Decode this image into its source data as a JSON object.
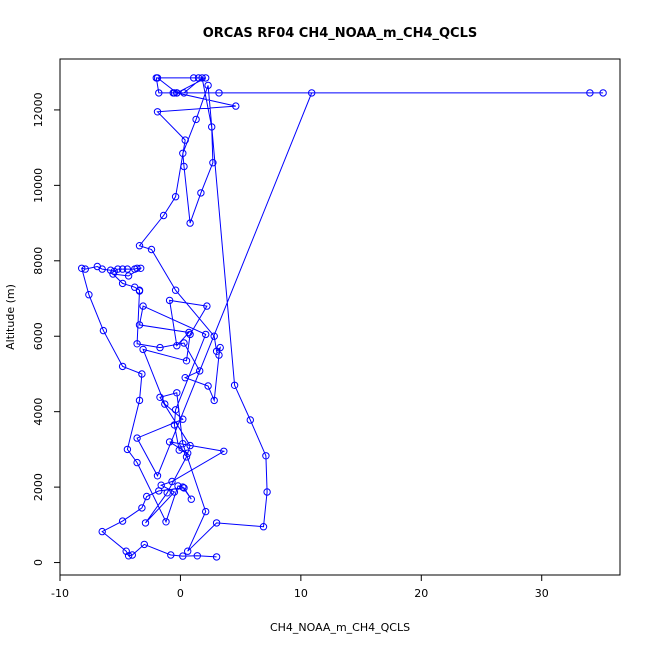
{
  "chart_data": {
    "type": "line",
    "title": "ORCAS RF04 CH4_NOAA_m_CH4_QCLS",
    "xlabel": "CH4_NOAA_m_CH4_QCLS",
    "ylabel": "Altitude (m)",
    "xlim": [
      -10,
      36.5
    ],
    "ylim": [
      -330,
      13350
    ],
    "x_ticks": [
      -10,
      0,
      10,
      20,
      30
    ],
    "y_ticks": [
      0,
      2000,
      4000,
      6000,
      8000,
      10000,
      12000
    ],
    "grid": false,
    "legend": "none",
    "color": "#0000ff",
    "series": [
      {
        "x": [
          3.0,
          1.4,
          0.2,
          -0.8,
          -3.0,
          -4.0,
          -4.3,
          -4.5,
          -6.5,
          -4.8,
          -3.2,
          -2.8,
          -1.8,
          0.3,
          0.9,
          0.2,
          -0.2,
          -1.2,
          -3.6,
          -4.4,
          -3.4,
          -3.2,
          -4.8,
          -6.4,
          -7.6,
          -8.2,
          -7.9,
          -6.9,
          -6.5,
          -5.8,
          -5.5,
          -5.2,
          -4.8,
          -4.4,
          -3.8,
          -3.6,
          -3.3,
          -4.3,
          -5.6,
          -4.8,
          -3.8,
          -3.4,
          -3.4,
          -3.6,
          -1.7,
          0.3,
          1.6,
          0.4,
          2.3,
          2.8,
          3.2,
          3.3,
          3.0,
          2.8,
          -0.4,
          -2.4,
          -3.4,
          -1.4,
          -0.4,
          0.4,
          -1.9,
          4.6,
          -0.3,
          2.1,
          1.5,
          1.1,
          -2.0,
          -1.8,
          -0.6,
          0.3,
          1.8,
          2.6,
          2.7,
          1.7,
          0.8,
          0.3,
          0.2,
          1.3,
          2.3,
          4.5,
          5.8,
          7.1,
          7.2,
          6.9,
          3.0,
          0.6,
          2.1,
          0.2,
          -0.3,
          -1.7,
          0.8,
          0.5,
          -1.1,
          -2.9,
          -0.5,
          -1.6,
          -0.7,
          3.6,
          -0.9,
          0.6,
          -0.1,
          -0.5,
          -0.4,
          2.1,
          -3.1,
          -3.4,
          0.7,
          -0.3,
          -0.9,
          2.2,
          0.8,
          0.5,
          -3.1,
          -1.3,
          0.2,
          -3.6,
          -1.9,
          10.9,
          34.0,
          35.1,
          3.2,
          -0.5,
          -0.3,
          -1.9
        ],
        "y": [
          150,
          180,
          170,
          200,
          480,
          200,
          180,
          300,
          820,
          1100,
          1450,
          1750,
          1900,
          1980,
          1680,
          2000,
          2030,
          1080,
          2650,
          3000,
          4300,
          5000,
          5200,
          6150,
          7100,
          7800,
          7780,
          7850,
          7780,
          7750,
          7720,
          7780,
          7780,
          7780,
          7780,
          7800,
          7800,
          7600,
          7650,
          7400,
          7300,
          7220,
          7200,
          5800,
          5700,
          5820,
          5080,
          4900,
          4680,
          4300,
          5500,
          5700,
          5600,
          6000,
          7220,
          8300,
          8400,
          9200,
          9700,
          11200,
          11950,
          12100,
          12450,
          12850,
          12850,
          12850,
          12850,
          12450,
          12450,
          12450,
          12850,
          11550,
          10600,
          9800,
          9000,
          10500,
          10850,
          11750,
          12650,
          4700,
          3780,
          2830,
          1870,
          950,
          1050,
          300,
          1350,
          3150,
          4500,
          4380,
          3100,
          2800,
          1850,
          1050,
          1870,
          2050,
          2150,
          2950,
          3200,
          2900,
          2980,
          3650,
          4050,
          6050,
          6800,
          6300,
          6100,
          5750,
          6950,
          6800,
          6050,
          5350,
          5650,
          4200,
          3800,
          3300,
          2300,
          12450,
          12450,
          12450,
          12450,
          12450,
          12450,
          12850
        ]
      }
    ]
  }
}
